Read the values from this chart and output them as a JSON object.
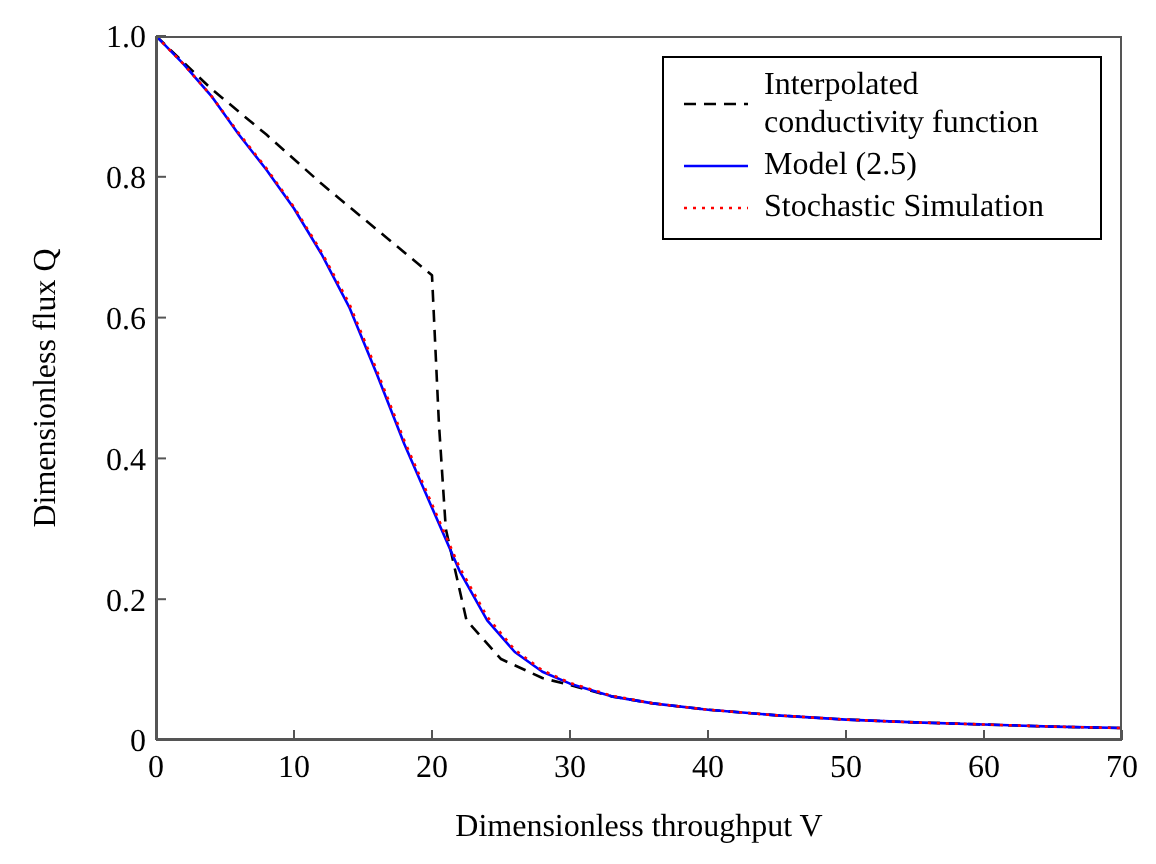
{
  "chart_data": {
    "type": "line",
    "xlabel": "Dimensionless throughput V",
    "ylabel": "Dimensionless flux Q",
    "xlim": [
      0,
      70
    ],
    "ylim": [
      0,
      1
    ],
    "xticks": [
      0,
      10,
      20,
      30,
      40,
      50,
      60,
      70
    ],
    "yticks": [
      {
        "value": 0,
        "label": "0"
      },
      0.2,
      0.4,
      0.6,
      0.8,
      {
        "value": 1,
        "label": "1.0"
      }
    ],
    "grid": false,
    "legend": "top right",
    "marker": "none",
    "series": [
      {
        "name": "Interpolated conductivity function",
        "color": "#000000",
        "line_style": "dashed",
        "x": [
          0,
          4,
          8,
          12,
          16,
          20,
          20.5,
          21,
          22.5,
          25,
          28,
          30,
          33,
          36,
          40,
          45,
          50,
          55,
          60,
          65,
          70
        ],
        "values": [
          1,
          0.925,
          0.86,
          0.79,
          0.725,
          0.66,
          0.45,
          0.3,
          0.17,
          0.115,
          0.088,
          0.078,
          0.062,
          0.052,
          0.043,
          0.035,
          0.029,
          0.025,
          0.022,
          0.019,
          0.017
        ]
      },
      {
        "name": "Model (2.5)",
        "color": "#0000ff",
        "line_style": "solid",
        "x": [
          0,
          2,
          4,
          6,
          8,
          10,
          12,
          14,
          16,
          18,
          20,
          22,
          24,
          26,
          28,
          30,
          33,
          36,
          40,
          45,
          50,
          55,
          60,
          65,
          70
        ],
        "values": [
          1,
          0.96,
          0.915,
          0.86,
          0.81,
          0.755,
          0.69,
          0.615,
          0.52,
          0.42,
          0.33,
          0.24,
          0.17,
          0.125,
          0.097,
          0.08,
          0.062,
          0.052,
          0.043,
          0.035,
          0.029,
          0.025,
          0.022,
          0.019,
          0.017
        ]
      },
      {
        "name": "Stochastic Simulation",
        "color": "#ff0000",
        "line_style": "dotted",
        "x": [
          0,
          2,
          4,
          6,
          8,
          10,
          12,
          14,
          16,
          18,
          20,
          22,
          24,
          26,
          28,
          30,
          33,
          36,
          40,
          45,
          50,
          55,
          60,
          65,
          70
        ],
        "values": [
          1,
          0.96,
          0.915,
          0.862,
          0.812,
          0.757,
          0.693,
          0.62,
          0.525,
          0.425,
          0.335,
          0.245,
          0.175,
          0.128,
          0.099,
          0.081,
          0.063,
          0.052,
          0.043,
          0.035,
          0.029,
          0.025,
          0.022,
          0.019,
          0.017
        ]
      }
    ]
  }
}
